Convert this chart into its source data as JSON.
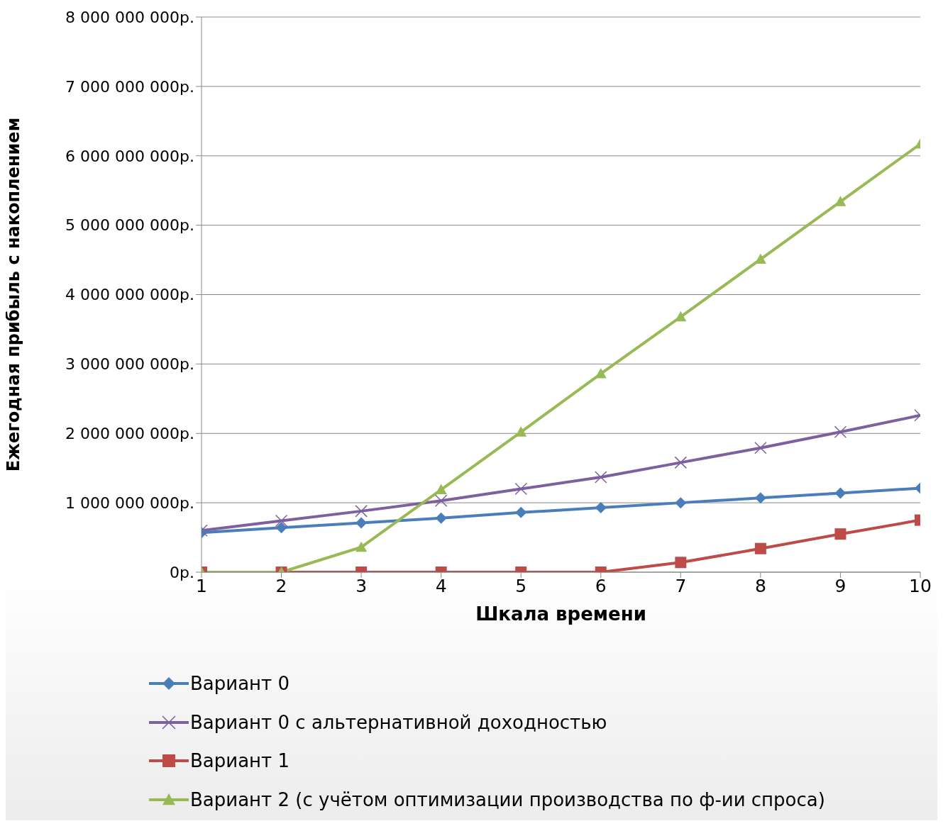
{
  "chart_data": {
    "type": "line",
    "xlabel": "Шкала времени",
    "ylabel": "Ежегодная прибыль с накоплением",
    "x": [
      1,
      2,
      3,
      4,
      5,
      6,
      7,
      8,
      9,
      10
    ],
    "xlim": [
      1,
      10
    ],
    "xticks": [
      1,
      2,
      3,
      4,
      5,
      6,
      7,
      8,
      9,
      10
    ],
    "ylim": [
      0,
      8000000000
    ],
    "yticks": [
      {
        "value": 0,
        "label": "0р."
      },
      {
        "value": 1000000000,
        "label": "1 000 000 000р."
      },
      {
        "value": 2000000000,
        "label": "2 000 000 000р."
      },
      {
        "value": 3000000000,
        "label": "3 000 000 000р."
      },
      {
        "value": 4000000000,
        "label": "4 000 000 000р."
      },
      {
        "value": 5000000000,
        "label": "5 000 000 000р."
      },
      {
        "value": 6000000000,
        "label": "6 000 000 000р."
      },
      {
        "value": 7000000000,
        "label": "7 000 000 000р."
      },
      {
        "value": 8000000000,
        "label": "8 000 000 000р."
      }
    ],
    "grid": "y",
    "legend": "bottom",
    "series": [
      {
        "name": "Вариант 0",
        "color": "#4a7ebb",
        "marker": "diamond",
        "values": [
          570000000,
          640000000,
          710000000,
          780000000,
          860000000,
          930000000,
          1000000000,
          1070000000,
          1140000000,
          1210000000
        ]
      },
      {
        "name": "Вариант 0 с альтернативной доходностью",
        "color": "#7e5fa0",
        "marker": "cross",
        "values": [
          600000000,
          740000000,
          880000000,
          1030000000,
          1200000000,
          1370000000,
          1580000000,
          1790000000,
          2020000000,
          2260000000
        ]
      },
      {
        "name": "Вариант 1",
        "color": "#be4b48",
        "marker": "square",
        "values": [
          0,
          0,
          0,
          0,
          0,
          0,
          140000000,
          340000000,
          550000000,
          750000000
        ]
      },
      {
        "name": "Вариант 2 (с учётом оптимизации производства по ф-ии спроса)",
        "color": "#98b954",
        "marker": "triangle",
        "values": [
          0,
          0,
          360000000,
          1190000000,
          2020000000,
          2860000000,
          3680000000,
          4510000000,
          5340000000,
          6170000000
        ]
      }
    ]
  }
}
